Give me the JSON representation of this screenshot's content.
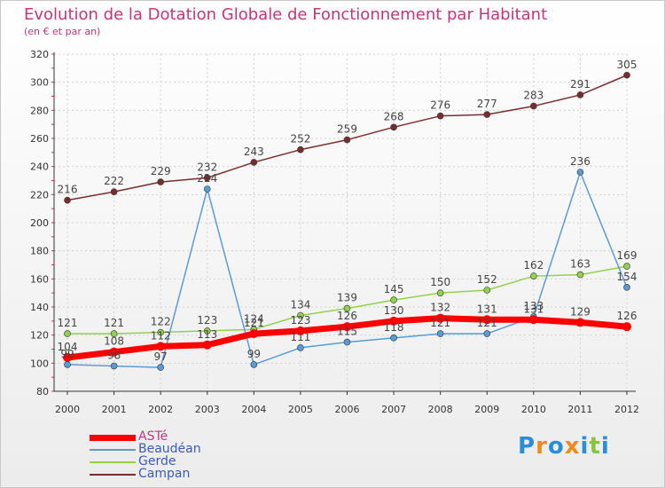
{
  "header": {
    "title": "Evolution de la Dotation Globale de Fonctionnement par Habitant",
    "subtitle": "(en € et par an)"
  },
  "logo": {
    "text": "Proxiti",
    "colors": [
      "#2a8fd8",
      "#f08a1c",
      "#2a8fd8",
      "#f08a1c",
      "#2a8fd8",
      "#8ac43f",
      "#2a8fd8"
    ]
  },
  "chart_data": {
    "type": "line",
    "x": [
      2000,
      2001,
      2002,
      2003,
      2004,
      2005,
      2006,
      2007,
      2008,
      2009,
      2010,
      2011,
      2012
    ],
    "ylim": [
      80,
      320
    ],
    "yticks": [
      80,
      100,
      120,
      140,
      160,
      180,
      200,
      220,
      240,
      260,
      280,
      300,
      320
    ],
    "grid": true,
    "legend_position": "bottom-left",
    "series": [
      {
        "name": "ASTé",
        "color": "#ff0000",
        "values": [
          104,
          108,
          112,
          113,
          121,
          123,
          126,
          130,
          132,
          131,
          131,
          129,
          126
        ]
      },
      {
        "name": "Beaudéan",
        "color": "#5b9bd5",
        "values": [
          99,
          98,
          97,
          224,
          99,
          111,
          115,
          118,
          121,
          121,
          133,
          236,
          154
        ]
      },
      {
        "name": "Gerde",
        "color": "#92d050",
        "values": [
          121,
          121,
          122,
          123,
          124,
          134,
          139,
          145,
          150,
          152,
          162,
          163,
          169
        ]
      },
      {
        "name": "Campan",
        "color": "#7b2c2c",
        "values": [
          216,
          222,
          229,
          232,
          243,
          252,
          259,
          268,
          276,
          277,
          283,
          291,
          305
        ]
      }
    ]
  }
}
